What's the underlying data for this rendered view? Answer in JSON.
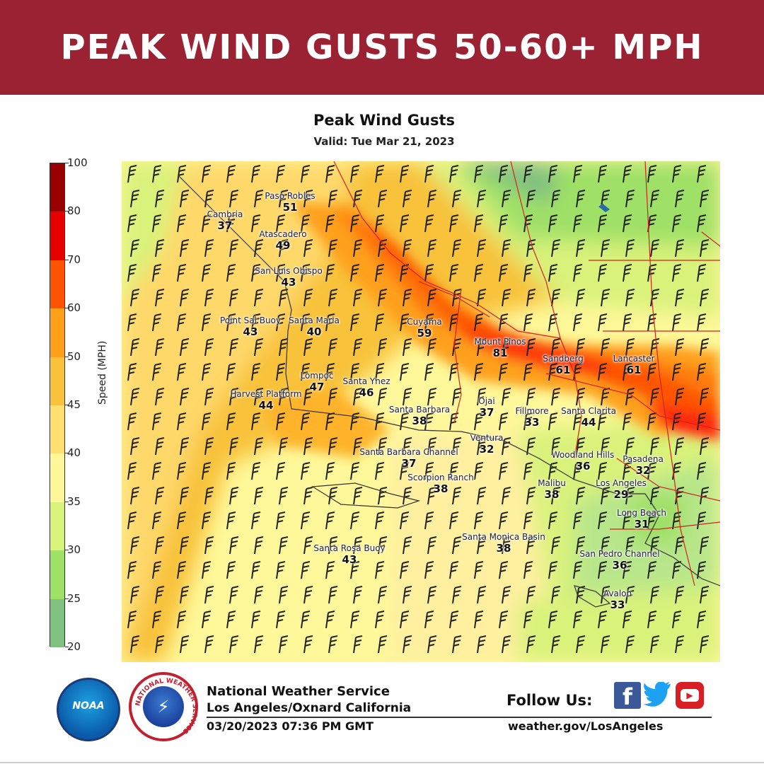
{
  "banner": {
    "title": "PEAK WIND GUSTS 50-60+ MPH",
    "bg_color": "#9a2233"
  },
  "map": {
    "title": "Peak Wind Gusts",
    "subtitle": "Valid: Tue Mar 21, 2023",
    "colorbar": {
      "label": "Speed (MPH)",
      "ticks": [
        "100",
        "80",
        "70",
        "60",
        "50",
        "45",
        "40",
        "35",
        "30",
        "25",
        "20"
      ],
      "tick_values": [
        100,
        80,
        70,
        60,
        50,
        45,
        40,
        35,
        30,
        25,
        20
      ],
      "colors": [
        "#990000",
        "#e60000",
        "#ff5500",
        "#ffa01a",
        "#f8c23a",
        "#ffe070",
        "#fff89a",
        "#d9f27a",
        "#9fe066",
        "#80c080",
        "#40c0c0"
      ]
    },
    "stations": [
      {
        "name": "Paso Robles",
        "value": "51"
      },
      {
        "name": "Cambria",
        "value": "37"
      },
      {
        "name": "Atascadero",
        "value": "49"
      },
      {
        "name": "San Luis Obispo",
        "value": "43"
      },
      {
        "name": "Cuyama",
        "value": "59"
      },
      {
        "name": "Point Sal Buoy",
        "value": "43"
      },
      {
        "name": "Santa Maria",
        "value": "40"
      },
      {
        "name": "Mount Pinos",
        "value": "81"
      },
      {
        "name": "Sandberg",
        "value": "61"
      },
      {
        "name": "Lancaster",
        "value": "61"
      },
      {
        "name": "Lompoc",
        "value": "47"
      },
      {
        "name": "Santa Ynez",
        "value": "46"
      },
      {
        "name": "Harvest Platform",
        "value": "44"
      },
      {
        "name": "Santa Barbara",
        "value": "38"
      },
      {
        "name": "Ojai",
        "value": "37"
      },
      {
        "name": "Fillmore",
        "value": "33"
      },
      {
        "name": "Santa Clarita",
        "value": "44"
      },
      {
        "name": "Ventura",
        "value": "32"
      },
      {
        "name": "Santa Barbara Channel",
        "value": "37"
      },
      {
        "name": "Woodland Hills",
        "value": "36"
      },
      {
        "name": "Pasadena",
        "value": "32"
      },
      {
        "name": "Scorpion Ranch",
        "value": "38"
      },
      {
        "name": "Malibu",
        "value": "38"
      },
      {
        "name": "Los Angeles",
        "value": "29"
      },
      {
        "name": "Long Beach",
        "value": "31"
      },
      {
        "name": "Santa Monica Basin",
        "value": "38"
      },
      {
        "name": "Santa Rosa Buoy",
        "value": "43"
      },
      {
        "name": "San Pedro Channel",
        "value": "36"
      },
      {
        "name": "Avalon",
        "value": "33"
      }
    ]
  },
  "footer": {
    "org_line1": "National Weather Service",
    "org_line2": "Los Angeles/Oxnard California",
    "timestamp": "03/20/2023 07:36 PM GMT",
    "follow_label": "Follow Us:",
    "website": "weather.gov/LosAngeles",
    "noaa_logo_text": "NOAA",
    "nws_logo_text": "NATIONAL WEATHER SERVICE",
    "social_icons": [
      "facebook-icon",
      "twitter-icon",
      "youtube-icon"
    ]
  }
}
